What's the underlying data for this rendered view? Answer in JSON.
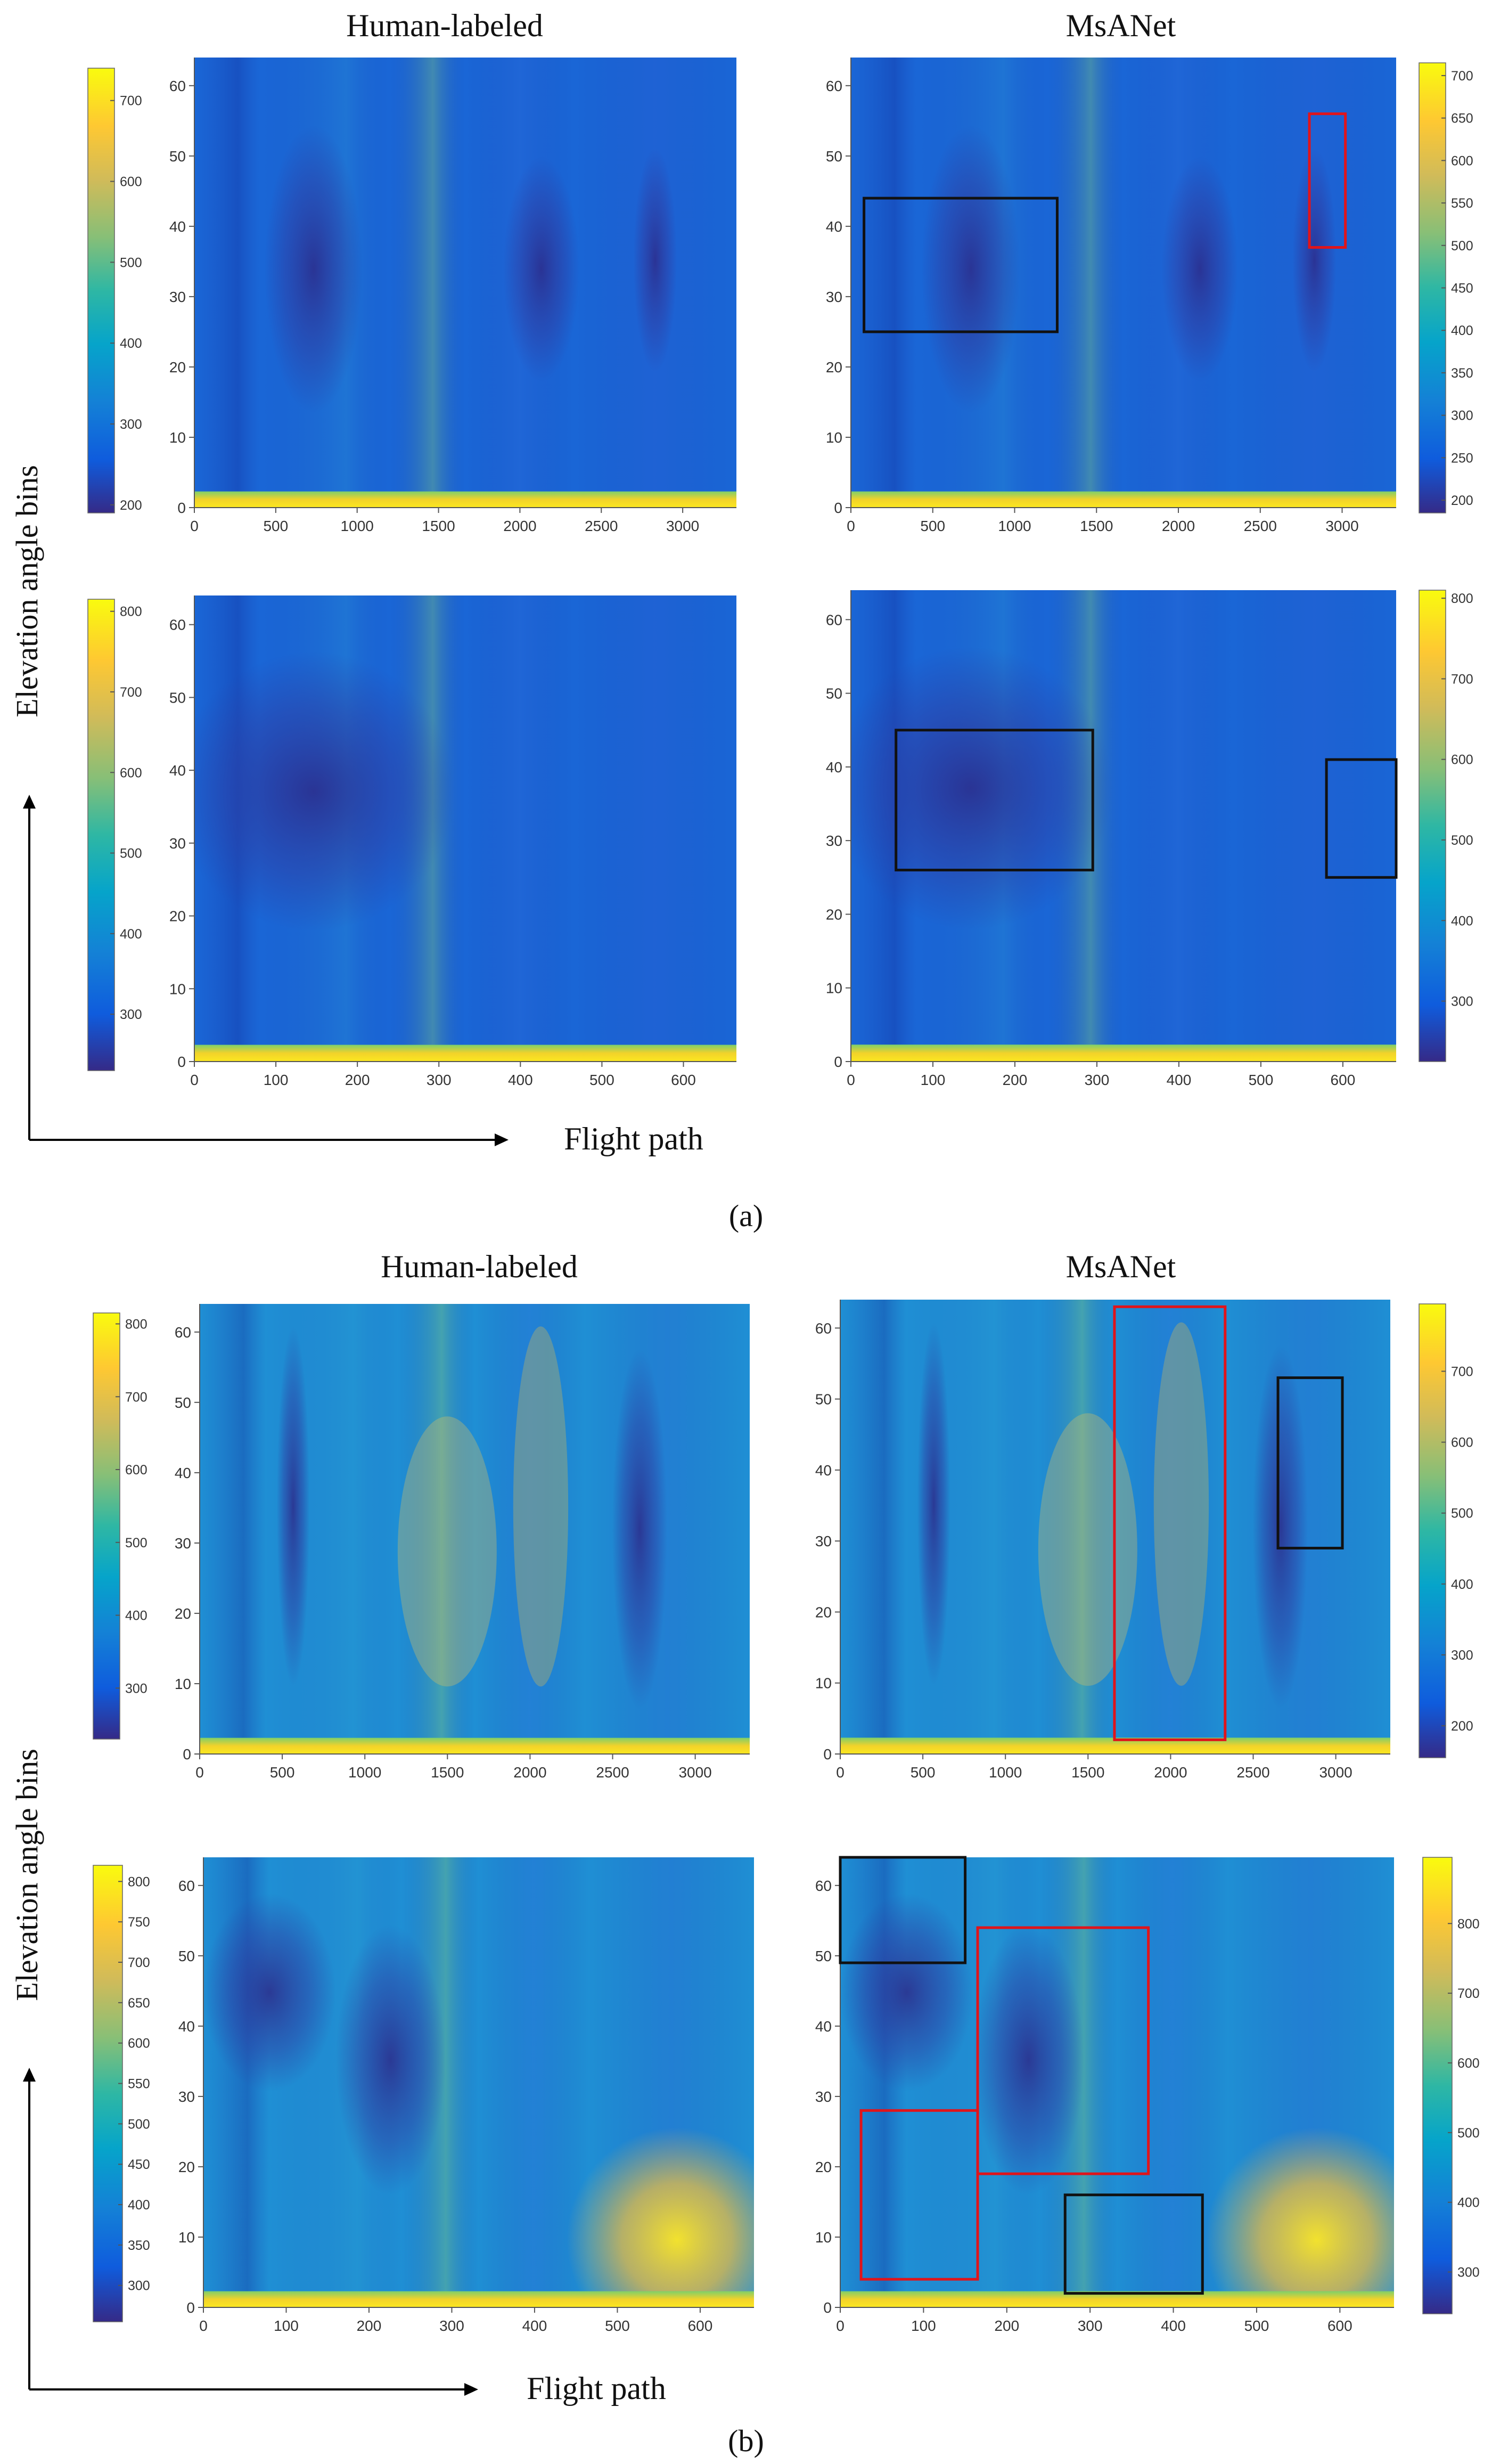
{
  "figure": {
    "group_labels": [
      "(a)",
      "(b)"
    ],
    "ylabel": "Elevation angle bins",
    "xlabel": "Flight path",
    "column_titles": [
      "Human-labeled",
      "MsANet"
    ]
  },
  "chart_data": [
    {
      "type": "heatmap",
      "group": "(a)",
      "title": "Human-labeled",
      "x_ticks": [
        0,
        500,
        1000,
        1500,
        2000,
        2500,
        3000
      ],
      "xlim": [
        0,
        3330
      ],
      "y_ticks": [
        0,
        10,
        20,
        30,
        40,
        50,
        60
      ],
      "ylim": [
        0,
        64
      ],
      "colorbar": {
        "ticks": [
          200,
          300,
          400,
          500,
          600,
          700
        ],
        "range": [
          190,
          740
        ],
        "side": "left"
      },
      "boxes": []
    },
    {
      "type": "heatmap",
      "group": "(a)",
      "title": "MsANet",
      "x_ticks": [
        0,
        500,
        1000,
        1500,
        2000,
        2500,
        3000
      ],
      "xlim": [
        0,
        3330
      ],
      "y_ticks": [
        0,
        10,
        20,
        30,
        40,
        50,
        60
      ],
      "ylim": [
        0,
        64
      ],
      "colorbar": {
        "ticks": [
          200,
          250,
          300,
          350,
          400,
          450,
          500,
          550,
          600,
          650,
          700
        ],
        "range": [
          185,
          715
        ],
        "side": "right"
      },
      "boxes": [
        {
          "color": "black",
          "x": [
            80,
            1260
          ],
          "y": [
            25,
            44
          ]
        },
        {
          "color": "red",
          "x": [
            2800,
            3020
          ],
          "y": [
            37,
            56
          ]
        }
      ]
    },
    {
      "type": "heatmap",
      "group": "(a)",
      "title": "",
      "x_ticks": [
        0,
        100,
        200,
        300,
        400,
        500,
        600
      ],
      "xlim": [
        0,
        665
      ],
      "y_ticks": [
        0,
        10,
        20,
        30,
        40,
        50,
        60
      ],
      "ylim": [
        0,
        64
      ],
      "colorbar": {
        "ticks": [
          300,
          400,
          500,
          600,
          700,
          800
        ],
        "range": [
          230,
          815
        ],
        "side": "left"
      },
      "boxes": []
    },
    {
      "type": "heatmap",
      "group": "(a)",
      "title": "",
      "x_ticks": [
        0,
        100,
        200,
        300,
        400,
        500,
        600
      ],
      "xlim": [
        0,
        665
      ],
      "y_ticks": [
        0,
        10,
        20,
        30,
        40,
        50,
        60
      ],
      "ylim": [
        0,
        64
      ],
      "colorbar": {
        "ticks": [
          300,
          400,
          500,
          600,
          700,
          800
        ],
        "range": [
          225,
          810
        ],
        "side": "right"
      },
      "boxes": [
        {
          "color": "black",
          "x": [
            55,
            295
          ],
          "y": [
            26,
            45
          ]
        },
        {
          "color": "black",
          "x": [
            580,
            665
          ],
          "y": [
            25,
            41
          ]
        }
      ]
    },
    {
      "type": "heatmap",
      "group": "(b)",
      "title": "Human-labeled",
      "x_ticks": [
        0,
        500,
        1000,
        1500,
        2000,
        2500,
        3000
      ],
      "xlim": [
        0,
        3330
      ],
      "y_ticks": [
        0,
        10,
        20,
        30,
        40,
        50,
        60
      ],
      "ylim": [
        0,
        64
      ],
      "colorbar": {
        "ticks": [
          300,
          400,
          500,
          600,
          700,
          800
        ],
        "range": [
          230,
          815
        ],
        "side": "left"
      },
      "boxes": []
    },
    {
      "type": "heatmap",
      "group": "(b)",
      "title": "MsANet",
      "x_ticks": [
        0,
        500,
        1000,
        1500,
        2000,
        2500,
        3000
      ],
      "xlim": [
        0,
        3330
      ],
      "y_ticks": [
        0,
        10,
        20,
        30,
        40,
        50,
        60
      ],
      "ylim": [
        0,
        64
      ],
      "colorbar": {
        "ticks": [
          200,
          300,
          400,
          500,
          600,
          700
        ],
        "range": [
          155,
          795
        ],
        "side": "right"
      },
      "boxes": [
        {
          "color": "red",
          "x": [
            1660,
            2330
          ],
          "y": [
            2,
            63
          ]
        },
        {
          "color": "black",
          "x": [
            2650,
            3040
          ],
          "y": [
            29,
            53
          ]
        }
      ]
    },
    {
      "type": "heatmap",
      "group": "(b)",
      "title": "",
      "x_ticks": [
        0,
        100,
        200,
        300,
        400,
        500,
        600
      ],
      "xlim": [
        0,
        665
      ],
      "y_ticks": [
        0,
        10,
        20,
        30,
        40,
        50,
        60
      ],
      "ylim": [
        0,
        64
      ],
      "colorbar": {
        "ticks": [
          300,
          350,
          400,
          450,
          500,
          550,
          600,
          650,
          700,
          750,
          800
        ],
        "range": [
          255,
          820
        ],
        "side": "left"
      },
      "boxes": []
    },
    {
      "type": "heatmap",
      "group": "(b)",
      "title": "",
      "x_ticks": [
        0,
        100,
        200,
        300,
        400,
        500,
        600
      ],
      "xlim": [
        0,
        665
      ],
      "y_ticks": [
        0,
        10,
        20,
        30,
        40,
        50,
        60
      ],
      "ylim": [
        0,
        64
      ],
      "colorbar": {
        "ticks": [
          300,
          400,
          500,
          600,
          700,
          800
        ],
        "range": [
          240,
          895
        ],
        "side": "right"
      },
      "boxes": [
        {
          "color": "black",
          "x": [
            0,
            150
          ],
          "y": [
            49,
            64
          ]
        },
        {
          "color": "red",
          "x": [
            165,
            370
          ],
          "y": [
            19,
            54
          ]
        },
        {
          "color": "red",
          "x": [
            25,
            165
          ],
          "y": [
            4,
            28
          ]
        },
        {
          "color": "black",
          "x": [
            270,
            435
          ],
          "y": [
            2,
            16
          ]
        }
      ]
    }
  ]
}
